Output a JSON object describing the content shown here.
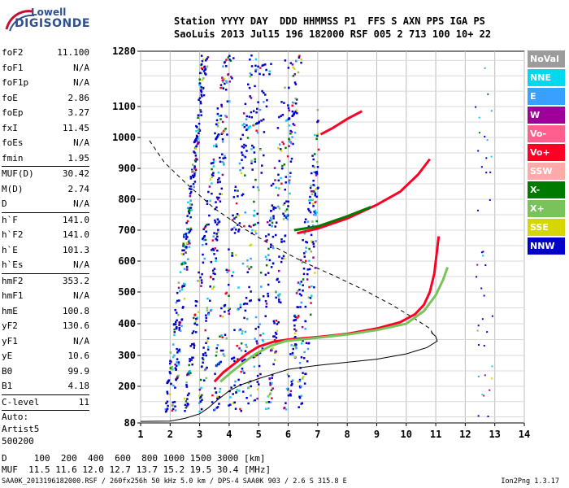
{
  "logo": {
    "line1": "Lowell",
    "line2": "DIGISONDE"
  },
  "header": {
    "row1": "Station YYYY DAY  DDD HHMMSS P1  FFS S AXN PPS IGA PS",
    "row2": "SaoLuis 2013 Jul15 196 182000 RSF 005 2 713 100 10+ 22"
  },
  "params": [
    {
      "name": "foF2",
      "value": "11.100"
    },
    {
      "name": "foF1",
      "value": "N/A"
    },
    {
      "name": "foF1p",
      "value": "N/A"
    },
    {
      "name": "foE",
      "value": "2.86"
    },
    {
      "name": "foEp",
      "value": "3.27"
    },
    {
      "name": "fxI",
      "value": "11.45"
    },
    {
      "name": "foEs",
      "value": "N/A"
    },
    {
      "name": "fmin",
      "value": "1.95"
    },
    {
      "sep": true
    },
    {
      "name": "MUF(D)",
      "value": "30.42"
    },
    {
      "name": "M(D)",
      "value": "2.74"
    },
    {
      "name": "D",
      "value": "N/A"
    },
    {
      "sep": true
    },
    {
      "name": "h`F",
      "value": "141.0"
    },
    {
      "name": "h`F2",
      "value": "141.0"
    },
    {
      "name": "h`E",
      "value": "101.3"
    },
    {
      "name": "h`Es",
      "value": "N/A"
    },
    {
      "sep": true
    },
    {
      "name": "hmF2",
      "value": "353.2"
    },
    {
      "name": "hmF1",
      "value": "N/A"
    },
    {
      "name": "hmE",
      "value": "100.8"
    },
    {
      "name": "yF2",
      "value": "130.6"
    },
    {
      "name": "yF1",
      "value": "N/A"
    },
    {
      "name": "yE",
      "value": "10.6"
    },
    {
      "name": "B0",
      "value": "99.9"
    },
    {
      "name": "B1",
      "value": "4.18"
    },
    {
      "sep": true
    },
    {
      "name": "C-level",
      "value": "11"
    },
    {
      "sep": true
    },
    {
      "text": "Auto:"
    },
    {
      "text": "Artist5"
    },
    {
      "text": "500200"
    }
  ],
  "legend": [
    {
      "label": "NoVal",
      "bg": "#9c9c9c",
      "fg": "#ffffff"
    },
    {
      "label": "NNE",
      "bg": "#00d8f0",
      "fg": "#ffffff"
    },
    {
      "label": "E",
      "bg": "#3aa0ff",
      "fg": "#ffffff"
    },
    {
      "label": "W",
      "bg": "#a0009a",
      "fg": "#ffffff"
    },
    {
      "label": "Vo-",
      "bg": "#ff5f8f",
      "fg": "#ffffff"
    },
    {
      "label": "Vo+",
      "bg": "#ff0025",
      "fg": "#ffffff"
    },
    {
      "label": "SSW",
      "bg": "#ffaaa8",
      "fg": "#ffffff"
    },
    {
      "label": "X-",
      "bg": "#007a00",
      "fg": "#ffffff"
    },
    {
      "label": "X+",
      "bg": "#7ac25a",
      "fg": "#ffffff"
    },
    {
      "label": "SSE",
      "bg": "#d6d600",
      "fg": "#ffffff"
    },
    {
      "label": "NNW",
      "bg": "#0000c8",
      "fg": "#ffffff"
    }
  ],
  "bottom": {
    "d_row": "D     100  200  400  600  800 1000 1500 3000 [km]",
    "muf_row": "MUF  11.5 11.6 12.0 12.7 13.7 15.2 19.5 30.4 [MHz]"
  },
  "footer": {
    "left": "SAA0K_2013196182000.RSF / 260fx256h 50 kHz 5.0 km / DPS-4 SAA0K 903 / 2.6 S 315.8 E",
    "right": "Ion2Png 1.3.17"
  },
  "chart_data": {
    "type": "scatter",
    "x_ticks": [
      "1",
      "2",
      "3",
      "4",
      "5",
      "6",
      "7",
      "8",
      "9",
      "10",
      "11",
      "12",
      "13",
      "14"
    ],
    "y_ticks": [
      "1280",
      "1100",
      "1000",
      "900",
      "800",
      "700",
      "600",
      "500",
      "400",
      "300",
      "200",
      "80"
    ],
    "xlim": [
      1,
      14
    ],
    "ylim": [
      80,
      1280
    ],
    "series": [
      {
        "color": "#000000",
        "style": "solid",
        "points": [
          [
            1,
            85
          ],
          [
            2,
            86
          ],
          [
            2.5,
            95
          ],
          [
            3,
            110
          ],
          [
            3.3,
            130
          ],
          [
            3.6,
            155
          ],
          [
            4,
            185
          ],
          [
            4.4,
            205
          ],
          [
            5,
            225
          ],
          [
            5.5,
            240
          ],
          [
            6,
            255
          ],
          [
            7,
            268
          ],
          [
            8,
            278
          ],
          [
            9,
            288
          ],
          [
            10,
            305
          ],
          [
            10.7,
            325
          ],
          [
            11.05,
            345
          ],
          [
            11.0,
            360
          ],
          [
            10.85,
            372
          ]
        ]
      },
      {
        "color": "#000000",
        "style": "dashed",
        "points": [
          [
            1.3,
            990
          ],
          [
            1.8,
            920
          ],
          [
            2.5,
            855
          ],
          [
            3.5,
            770
          ],
          [
            4.5,
            705
          ],
          [
            5.5,
            648
          ],
          [
            6.5,
            598
          ],
          [
            7.5,
            555
          ],
          [
            8.5,
            510
          ],
          [
            9.5,
            460
          ],
          [
            10.3,
            415
          ],
          [
            10.8,
            385
          ],
          [
            10.95,
            360
          ]
        ]
      },
      {
        "color": "#ff0025",
        "style": "solid",
        "points": [
          [
            3.5,
            215
          ],
          [
            3.8,
            245
          ],
          [
            4.2,
            275
          ],
          [
            4.6,
            305
          ],
          [
            5,
            328
          ],
          [
            5.5,
            343
          ],
          [
            6,
            350
          ],
          [
            7,
            358
          ],
          [
            8,
            368
          ],
          [
            9,
            385
          ],
          [
            9.8,
            405
          ],
          [
            10.3,
            430
          ],
          [
            10.6,
            460
          ],
          [
            10.8,
            500
          ],
          [
            10.95,
            560
          ],
          [
            11.05,
            640
          ],
          [
            11.1,
            680
          ]
        ]
      },
      {
        "color": "#7ac25a",
        "style": "solid",
        "points": [
          [
            3.7,
            215
          ],
          [
            4.1,
            248
          ],
          [
            4.5,
            278
          ],
          [
            4.9,
            305
          ],
          [
            5.4,
            330
          ],
          [
            5.9,
            345
          ],
          [
            7,
            356
          ],
          [
            8,
            366
          ],
          [
            9,
            380
          ],
          [
            10,
            400
          ],
          [
            10.6,
            440
          ],
          [
            11,
            490
          ],
          [
            11.25,
            540
          ],
          [
            11.4,
            580
          ]
        ]
      },
      {
        "color": "#ff0025",
        "style": "solid",
        "points": [
          [
            6.3,
            690
          ],
          [
            7,
            705
          ],
          [
            8,
            738
          ],
          [
            9,
            782
          ],
          [
            9.8,
            825
          ],
          [
            10.4,
            880
          ],
          [
            10.8,
            930
          ]
        ]
      },
      {
        "color": "#ff0025",
        "style": "solid",
        "points": [
          [
            7.1,
            1010
          ],
          [
            7.5,
            1030
          ],
          [
            8,
            1060
          ],
          [
            8.5,
            1085
          ]
        ]
      },
      {
        "color": "#007a00",
        "style": "solid",
        "points": [
          [
            6.2,
            700
          ],
          [
            7,
            712
          ],
          [
            8,
            745
          ],
          [
            8.8,
            775
          ]
        ]
      }
    ]
  }
}
